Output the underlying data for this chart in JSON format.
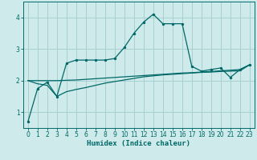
{
  "title": "",
  "xlabel": "Humidex (Indice chaleur)",
  "bg_color": "#ceeaea",
  "grid_color": "#a8d0d0",
  "line_color": "#006868",
  "xlim": [
    -0.5,
    23.5
  ],
  "ylim": [
    0.5,
    4.5
  ],
  "yticks": [
    1,
    2,
    3,
    4
  ],
  "xticks": [
    0,
    1,
    2,
    3,
    4,
    5,
    6,
    7,
    8,
    9,
    10,
    11,
    12,
    13,
    14,
    15,
    16,
    17,
    18,
    19,
    20,
    21,
    22,
    23
  ],
  "curve1_x": [
    0,
    1,
    2,
    3,
    4,
    5,
    6,
    7,
    8,
    9,
    10,
    11,
    12,
    13,
    14,
    15,
    16,
    17,
    18,
    19,
    20,
    21,
    22,
    23
  ],
  "curve1_y": [
    0.7,
    1.75,
    1.95,
    1.5,
    2.55,
    2.65,
    2.65,
    2.65,
    2.65,
    2.7,
    3.05,
    3.5,
    3.85,
    4.1,
    3.8,
    3.8,
    3.8,
    2.45,
    2.3,
    2.35,
    2.4,
    2.1,
    2.35,
    2.5
  ],
  "curve2_x": [
    0,
    1,
    2,
    3,
    4,
    5,
    6,
    7,
    8,
    9,
    10,
    11,
    12,
    13,
    14,
    15,
    16,
    17,
    18,
    19,
    20,
    21,
    22,
    23
  ],
  "curve2_y": [
    2.0,
    2.0,
    2.0,
    2.0,
    2.01,
    2.02,
    2.04,
    2.06,
    2.08,
    2.1,
    2.12,
    2.14,
    2.16,
    2.18,
    2.2,
    2.22,
    2.24,
    2.25,
    2.27,
    2.29,
    2.31,
    2.33,
    2.35,
    2.5
  ],
  "curve3_x": [
    0,
    1,
    2,
    3,
    4,
    5,
    6,
    7,
    8,
    9,
    10,
    11,
    12,
    13,
    14,
    15,
    16,
    17,
    18,
    19,
    20,
    21,
    22,
    23
  ],
  "curve3_y": [
    2.0,
    1.9,
    1.85,
    1.5,
    1.65,
    1.72,
    1.78,
    1.85,
    1.92,
    1.97,
    2.02,
    2.07,
    2.12,
    2.15,
    2.18,
    2.2,
    2.22,
    2.24,
    2.26,
    2.27,
    2.29,
    2.3,
    2.31,
    2.5
  ],
  "font_size_tick": 5.5,
  "font_size_xlabel": 6.5,
  "lw": 0.9,
  "marker_size": 2.8
}
